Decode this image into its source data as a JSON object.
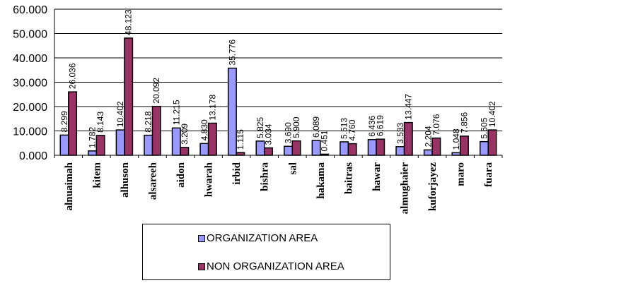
{
  "chart_data": {
    "type": "bar",
    "title": "",
    "xlabel": "",
    "ylabel": "",
    "ylim": [
      0,
      60
    ],
    "yticks": [
      "0.000",
      "10.000",
      "20.000",
      "30.000",
      "40.000",
      "50.000",
      "60.000"
    ],
    "grid": true,
    "categories": [
      "alnuaimah",
      "kitem",
      "alhuson",
      "alsareeh",
      "aidon",
      "hwarah",
      "irbid",
      "bishra",
      "sal",
      "hakama",
      "baitras",
      "hawar",
      "almughaier",
      "kuforjayez",
      "maro",
      "fuara"
    ],
    "series": [
      {
        "name": "ORGANIZATION AREA",
        "color": "#9999ff",
        "values": [
          8.299,
          1.782,
          10.402,
          8.218,
          11.215,
          4.83,
          35.776,
          5.825,
          3.69,
          6.089,
          5.513,
          6.436,
          3.533,
          2.204,
          1.048,
          5.605
        ],
        "labels": [
          "8.299",
          "1.782",
          "10.402",
          "8.218",
          "11.215",
          "4.830",
          "35.776",
          "5.825",
          "3.690",
          "6.089",
          "5.513",
          "6.436",
          "3.533",
          "2.204",
          "1.048",
          "5.605"
        ]
      },
      {
        "name": "NON ORGANIZATION AREA",
        "color": "#993366",
        "values": [
          26.036,
          8.143,
          48.123,
          20.092,
          3.209,
          13.178,
          1.115,
          3.034,
          5.9,
          0.451,
          4.76,
          6.619,
          13.447,
          7.076,
          7.856,
          10.402
        ],
        "labels": [
          "26.036",
          "8.143",
          "48.123",
          "20.092",
          "3.209",
          "13.178",
          "1.115",
          "3.034",
          "5.900",
          "0.451",
          "4.760",
          "6.619",
          "13.447",
          "7.076",
          "7.856",
          "10.402"
        ]
      }
    ],
    "legend": "bottom"
  }
}
